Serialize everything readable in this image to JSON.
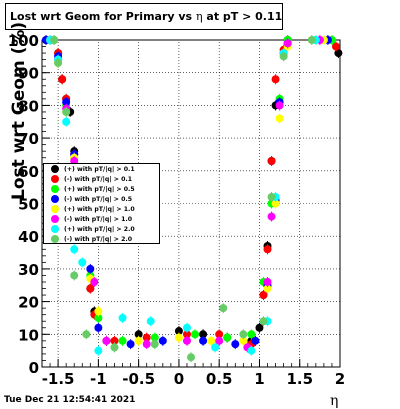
{
  "header": {
    "title_text": "Lost wrt Geom for Primary vs",
    "title_symbol": "η",
    "title_suffix": "at pT > 0.11"
  },
  "footer": {
    "timestamp": "Tue Dec 21 12:54:41 2021"
  },
  "axes": {
    "ylabel": "Lost wrt Geom (%)",
    "xlabel": "η"
  },
  "chart_data": {
    "type": "scatter",
    "title": "Lost wrt Geom for Primary vs η at pT > 0.11",
    "xlabel": "η",
    "ylabel": "Lost wrt Geom (%)",
    "xlim": [
      -1.7,
      2.0
    ],
    "ylim": [
      0,
      100
    ],
    "grid": true,
    "legend_position": "left-middle",
    "xticks": [
      "-1.5",
      "-1",
      "-0.5",
      "0",
      "0.5",
      "1",
      "1.5",
      "2"
    ],
    "yticks": [
      "0",
      "10",
      "20",
      "30",
      "40",
      "50",
      "60",
      "70",
      "80",
      "90",
      "100"
    ],
    "series": [
      {
        "name": "(+) with pT/|q| > 0.1",
        "color": "#000000",
        "points": [
          [
            -1.65,
            100
          ],
          [
            -1.5,
            96
          ],
          [
            -1.45,
            88
          ],
          [
            -1.4,
            82
          ],
          [
            -1.35,
            78
          ],
          [
            -1.3,
            66
          ],
          [
            -1.1,
            24
          ],
          [
            -1.05,
            17
          ],
          [
            -0.9,
            8
          ],
          [
            -0.5,
            10
          ],
          [
            0,
            11
          ],
          [
            0.3,
            10
          ],
          [
            0.6,
            9
          ],
          [
            0.9,
            8
          ],
          [
            1.0,
            12
          ],
          [
            1.05,
            22
          ],
          [
            1.1,
            37
          ],
          [
            1.15,
            63
          ],
          [
            1.2,
            80
          ],
          [
            1.3,
            96
          ],
          [
            1.35,
            100
          ],
          [
            1.98,
            96
          ]
        ]
      },
      {
        "name": "(-) with pT/|q| > 0.1",
        "color": "#ff0000",
        "points": [
          [
            -1.6,
            100
          ],
          [
            -1.5,
            96
          ],
          [
            -1.45,
            88
          ],
          [
            -1.4,
            82
          ],
          [
            -1.3,
            65
          ],
          [
            -1.1,
            24
          ],
          [
            -1.05,
            16
          ],
          [
            -0.8,
            8
          ],
          [
            -0.4,
            9
          ],
          [
            0.1,
            10
          ],
          [
            0.5,
            10
          ],
          [
            0.9,
            7
          ],
          [
            1.05,
            22
          ],
          [
            1.1,
            36
          ],
          [
            1.15,
            63
          ],
          [
            1.2,
            88
          ],
          [
            1.3,
            97
          ],
          [
            1.95,
            98
          ]
        ]
      },
      {
        "name": "(+) with pT/|q| > 0.5",
        "color": "#00ff00",
        "points": [
          [
            -1.55,
            100
          ],
          [
            -1.5,
            94
          ],
          [
            -1.4,
            80
          ],
          [
            -1.3,
            64
          ],
          [
            -1.1,
            28
          ],
          [
            -1.0,
            15
          ],
          [
            -0.7,
            8
          ],
          [
            -0.3,
            9
          ],
          [
            0.2,
            10
          ],
          [
            0.6,
            9
          ],
          [
            0.9,
            10
          ],
          [
            1.05,
            26
          ],
          [
            1.15,
            50
          ],
          [
            1.25,
            82
          ],
          [
            1.35,
            100
          ],
          [
            1.9,
            100
          ]
        ]
      },
      {
        "name": "(-) with pT/|q| > 0.5",
        "color": "#0000ff",
        "points": [
          [
            -1.65,
            100
          ],
          [
            -1.5,
            95
          ],
          [
            -1.4,
            81
          ],
          [
            -1.3,
            65
          ],
          [
            -1.1,
            30
          ],
          [
            -1.0,
            12
          ],
          [
            -0.6,
            7
          ],
          [
            -0.2,
            8
          ],
          [
            0.3,
            8
          ],
          [
            0.7,
            7
          ],
          [
            0.95,
            8
          ],
          [
            1.1,
            25
          ],
          [
            1.2,
            51
          ],
          [
            1.25,
            81
          ],
          [
            1.35,
            99
          ],
          [
            1.85,
            100
          ]
        ]
      },
      {
        "name": "(+) with pT/|q| > 1.0",
        "color": "#ffff00",
        "points": [
          [
            -1.6,
            100
          ],
          [
            -1.5,
            93
          ],
          [
            -1.4,
            78
          ],
          [
            -1.3,
            64
          ],
          [
            -1.1,
            27
          ],
          [
            -1.0,
            17
          ],
          [
            -0.5,
            8
          ],
          [
            0.0,
            9
          ],
          [
            0.4,
            8
          ],
          [
            0.8,
            8
          ],
          [
            1.1,
            24
          ],
          [
            1.2,
            50
          ],
          [
            1.25,
            76
          ],
          [
            1.35,
            98
          ],
          [
            1.8,
            100
          ]
        ]
      },
      {
        "name": "(-) with pT/|q| > 1.0",
        "color": "#ff00ff",
        "points": [
          [
            -1.6,
            100
          ],
          [
            -1.5,
            94
          ],
          [
            -1.4,
            79
          ],
          [
            -1.3,
            63
          ],
          [
            -1.05,
            26
          ],
          [
            -0.9,
            8
          ],
          [
            -0.4,
            7
          ],
          [
            0.1,
            8
          ],
          [
            0.5,
            8
          ],
          [
            0.85,
            6
          ],
          [
            1.1,
            26
          ],
          [
            1.15,
            46
          ],
          [
            1.25,
            80
          ],
          [
            1.35,
            99
          ],
          [
            1.75,
            100
          ]
        ]
      },
      {
        "name": "(+) with pT/|q| > 2.0",
        "color": "#00ffff",
        "points": [
          [
            -1.6,
            100
          ],
          [
            -1.5,
            94
          ],
          [
            -1.4,
            75
          ],
          [
            -1.3,
            36
          ],
          [
            -1.2,
            32
          ],
          [
            -1.0,
            5
          ],
          [
            -0.7,
            15
          ],
          [
            -0.35,
            14
          ],
          [
            0.1,
            12
          ],
          [
            0.45,
            6
          ],
          [
            0.9,
            5
          ],
          [
            1.1,
            14
          ],
          [
            1.2,
            52
          ],
          [
            1.3,
            96
          ],
          [
            1.7,
            100
          ]
        ]
      },
      {
        "name": "(-) with pT/|q| > 2.0",
        "color": "#66cc66",
        "points": [
          [
            -1.55,
            100
          ],
          [
            -1.5,
            93
          ],
          [
            -1.4,
            78
          ],
          [
            -1.3,
            28
          ],
          [
            -1.15,
            10
          ],
          [
            -0.8,
            6
          ],
          [
            -0.3,
            7
          ],
          [
            0.15,
            3
          ],
          [
            0.55,
            18
          ],
          [
            0.8,
            10
          ],
          [
            1.05,
            14
          ],
          [
            1.15,
            52
          ],
          [
            1.3,
            95
          ],
          [
            1.65,
            100
          ]
        ]
      }
    ]
  }
}
